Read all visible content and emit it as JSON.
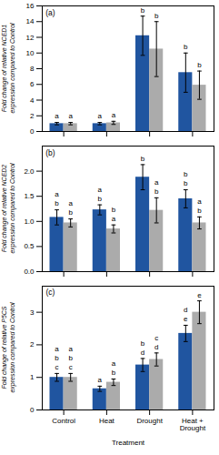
{
  "chart_data": [
    {
      "type": "bar",
      "title": "(a)",
      "ylabel": "Fold change of relative NCED1\nexpression compared to Control",
      "categories": [
        "Control",
        "Heat",
        "Drought",
        "Heat +\nDrought"
      ],
      "series": [
        {
          "color": "#2055A0",
          "values": [
            1.0,
            1.0,
            12.2,
            7.5
          ],
          "errors": [
            0.15,
            0.15,
            2.5,
            2.5
          ],
          "letters": [
            [
              "a"
            ],
            [
              "a"
            ],
            [
              "b"
            ],
            [
              "b"
            ]
          ]
        },
        {
          "color": "#ABABAB",
          "values": [
            1.0,
            1.1,
            10.5,
            5.9
          ],
          "errors": [
            0.15,
            0.2,
            3.5,
            1.8
          ],
          "letters": [
            [
              "a"
            ],
            [
              "a"
            ],
            [
              "b"
            ],
            [
              "b"
            ]
          ]
        }
      ],
      "ylim": [
        0,
        16
      ],
      "yticks": [
        0,
        2,
        4,
        6,
        8,
        10,
        12,
        14,
        16
      ],
      "grid": false,
      "tick_labels": "y"
    },
    {
      "type": "bar",
      "title": "(b)",
      "ylabel": "Fold change of relative NCED2\nexpression compared to Control",
      "categories": [
        "Control",
        "Heat",
        "Drought",
        "Heat +\nDrought"
      ],
      "series": [
        {
          "color": "#2055A0",
          "values": [
            1.08,
            1.23,
            1.88,
            1.45
          ],
          "errors": [
            0.15,
            0.1,
            0.25,
            0.18
          ],
          "letters": [
            [
              "a",
              "b"
            ],
            [
              "a",
              "b"
            ],
            [
              "b"
            ],
            [
              "b",
              "b"
            ]
          ]
        },
        {
          "color": "#ABABAB",
          "values": [
            0.97,
            0.85,
            1.22,
            0.97
          ],
          "errors": [
            0.08,
            0.08,
            0.25,
            0.12
          ],
          "letters": [
            [
              "a",
              "b"
            ],
            [
              "b",
              "a"
            ],
            [
              "a",
              "b"
            ],
            [
              "a",
              "b"
            ]
          ]
        }
      ],
      "ylim": [
        0,
        2.5
      ],
      "yticks": [
        {
          "value": 0,
          "label": "0.0"
        },
        0.5,
        {
          "value": 1,
          "label": "1.0"
        },
        1.5,
        {
          "value": 2,
          "label": "2.0"
        }
      ],
      "grid": false,
      "tick_labels": "y"
    },
    {
      "type": "bar",
      "title": "(c)",
      "ylabel": "Fold change of relative P5CS\nexpression compared to Control",
      "xlabel": "Treatment",
      "categories": [
        "Control",
        "Heat",
        "Drought",
        "Heat +\nDrought"
      ],
      "series": [
        {
          "color": "#2055A0",
          "values": [
            1.0,
            0.65,
            1.38,
            2.35
          ],
          "errors": [
            0.12,
            0.08,
            0.2,
            0.25
          ],
          "letters": [
            [
              "a",
              "b",
              "c"
            ],
            [
              "a"
            ],
            [
              "b",
              "d"
            ],
            [
              "d",
              "e"
            ]
          ]
        },
        {
          "color": "#ABABAB",
          "values": [
            1.0,
            0.85,
            1.55,
            3.0
          ],
          "errors": [
            0.12,
            0.1,
            0.2,
            0.35
          ],
          "letters": [
            [
              "a",
              "b",
              "c"
            ],
            [
              "a",
              "b"
            ],
            [
              "c",
              "d"
            ],
            [
              "e"
            ]
          ]
        }
      ],
      "ylim": [
        0,
        3.8
      ],
      "yticks": [
        0,
        1,
        2,
        3
      ],
      "grid": false
    }
  ]
}
